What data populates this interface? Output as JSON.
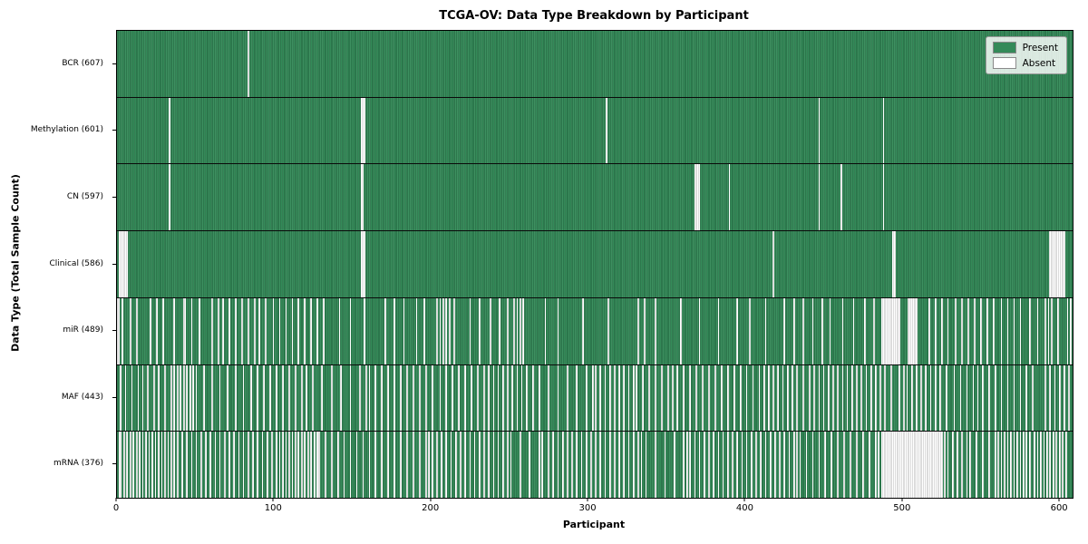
{
  "chart_data": {
    "type": "heatmap",
    "title": "TCGA-OV: Data Type Breakdown by Participant",
    "xlabel": "Participant",
    "ylabel": "Data Type (Total Sample Count)",
    "n_participants": 608,
    "xlim": [
      0,
      608
    ],
    "x_ticks": [
      0,
      100,
      200,
      300,
      400,
      500,
      600
    ],
    "legend": [
      {
        "label": "Present",
        "color": "#338a58"
      },
      {
        "label": "Absent",
        "color": "#ffffff"
      }
    ],
    "colors": {
      "present": "#338a58",
      "absent": "#ffffff",
      "grid_line": "#0a0a0a"
    },
    "rows": [
      {
        "name": "BCR",
        "label": "BCR (607)",
        "present_count": 607,
        "absent_participants": [
          83
        ]
      },
      {
        "name": "Methylation",
        "label": "Methylation (601)",
        "present_count": 601,
        "absent_participants": [
          33,
          155,
          156,
          157,
          311,
          446,
          487
        ]
      },
      {
        "name": "CN",
        "label": "CN (597)",
        "present_count": 597,
        "absent_participants": [
          33,
          155,
          156,
          367,
          368,
          369,
          370,
          389,
          446,
          460,
          487
        ]
      },
      {
        "name": "Clinical",
        "label": "Clinical (586)",
        "present_count": 586,
        "absent_participants": [
          1,
          2,
          3,
          4,
          5,
          6,
          155,
          156,
          157,
          417,
          493,
          494,
          593,
          594,
          595,
          596,
          597,
          598,
          599,
          600,
          601,
          602
        ]
      },
      {
        "name": "miR",
        "label": "miR (489)",
        "present_count": 489,
        "absent_participants": [
          0,
          1,
          3,
          8,
          12,
          21,
          25,
          29,
          36,
          42,
          43,
          47,
          52,
          60,
          64,
          67,
          71,
          75,
          79,
          83,
          87,
          90,
          94,
          99,
          103,
          107,
          111,
          115,
          119,
          123,
          127,
          131,
          141,
          148,
          157,
          170,
          176,
          182,
          190,
          195,
          203,
          205,
          207,
          209,
          211,
          214,
          224,
          230,
          237,
          243,
          248,
          252,
          254,
          256,
          258,
          272,
          280,
          296,
          312,
          331,
          335,
          342,
          358,
          370,
          382,
          394,
          402,
          412,
          424,
          430,
          436,
          442,
          448,
          453,
          461,
          468,
          475,
          481,
          486,
          487,
          488,
          489,
          490,
          491,
          492,
          493,
          494,
          495,
          496,
          497,
          503,
          504,
          505,
          506,
          507,
          508,
          516,
          520,
          524,
          528,
          533,
          537,
          541,
          545,
          549,
          553,
          557,
          562,
          566,
          570,
          574,
          580,
          585,
          590,
          592,
          594,
          598,
          604,
          606
        ]
      },
      {
        "name": "MAF",
        "label": "MAF (443)",
        "present_count": 443,
        "absent_participants": [
          2,
          5,
          9,
          13,
          16,
          19,
          23,
          26,
          30,
          34,
          36,
          38,
          40,
          42,
          44,
          46,
          48,
          50,
          55,
          60,
          65,
          70,
          75,
          80,
          85,
          89,
          93,
          97,
          101,
          105,
          109,
          113,
          117,
          120,
          124,
          130,
          136,
          142,
          148,
          154,
          158,
          160,
          164,
          168,
          172,
          176,
          180,
          184,
          188,
          192,
          196,
          200,
          205,
          209,
          213,
          217,
          221,
          225,
          229,
          233,
          236,
          239,
          242,
          245,
          248,
          251,
          254,
          257,
          260,
          264,
          268,
          274,
          280,
          286,
          292,
          298,
          302,
          304,
          307,
          310,
          313,
          316,
          319,
          322,
          325,
          328,
          330,
          334,
          338,
          342,
          346,
          350,
          353,
          356,
          360,
          364,
          368,
          372,
          376,
          380,
          384,
          388,
          392,
          396,
          400,
          404,
          408,
          411,
          414,
          417,
          420,
          423,
          426,
          429,
          432,
          436,
          440,
          443,
          446,
          449,
          452,
          455,
          458,
          461,
          464,
          467,
          470,
          473,
          476,
          479,
          482,
          485,
          488,
          492,
          497,
          500,
          502,
          505,
          508,
          511,
          514,
          517,
          520,
          523,
          527,
          532,
          536,
          540,
          544,
          547,
          550,
          554,
          558,
          562,
          566,
          570,
          574,
          578,
          582,
          590,
          593,
          596,
          599,
          602,
          605
        ]
      },
      {
        "name": "mRNA",
        "label": "mRNA (376)",
        "present_count": 376,
        "absent_participants": [
          1,
          2,
          4,
          6,
          8,
          10,
          12,
          14,
          16,
          18,
          20,
          22,
          24,
          26,
          28,
          30,
          32,
          34,
          36,
          38,
          41,
          44,
          47,
          50,
          53,
          56,
          59,
          62,
          65,
          68,
          71,
          74,
          77,
          80,
          83,
          86,
          89,
          92,
          95,
          98,
          101,
          103,
          105,
          107,
          109,
          111,
          113,
          115,
          117,
          119,
          121,
          123,
          125,
          127,
          128,
          132,
          136,
          140,
          144,
          148,
          152,
          156,
          160,
          164,
          168,
          172,
          176,
          180,
          184,
          188,
          192,
          196,
          198,
          200,
          203,
          206,
          209,
          212,
          215,
          218,
          221,
          224,
          227,
          230,
          233,
          236,
          239,
          242,
          245,
          248,
          250,
          256,
          262,
          268,
          270,
          274,
          277,
          280,
          283,
          286,
          289,
          292,
          295,
          298,
          301,
          304,
          307,
          310,
          313,
          316,
          319,
          322,
          325,
          328,
          331,
          333,
          336,
          342,
          348,
          354,
          360,
          362,
          364,
          367,
          370,
          373,
          376,
          379,
          382,
          385,
          388,
          391,
          394,
          397,
          400,
          403,
          406,
          409,
          412,
          415,
          418,
          421,
          424,
          427,
          430,
          432,
          434,
          438,
          442,
          446,
          450,
          454,
          458,
          462,
          466,
          470,
          474,
          478,
          482,
          484,
          486,
          487,
          488,
          489,
          490,
          491,
          492,
          493,
          494,
          495,
          496,
          497,
          498,
          499,
          500,
          501,
          502,
          503,
          504,
          505,
          506,
          507,
          508,
          509,
          510,
          511,
          512,
          513,
          514,
          515,
          516,
          517,
          518,
          519,
          520,
          521,
          522,
          523,
          524,
          526,
          528,
          531,
          534,
          537,
          540,
          542,
          546,
          550,
          554,
          558,
          560,
          562,
          564,
          566,
          568,
          570,
          572,
          574,
          576,
          578,
          580,
          583,
          585,
          587,
          589,
          591,
          593,
          595,
          597,
          599,
          601,
          603
        ]
      }
    ]
  }
}
